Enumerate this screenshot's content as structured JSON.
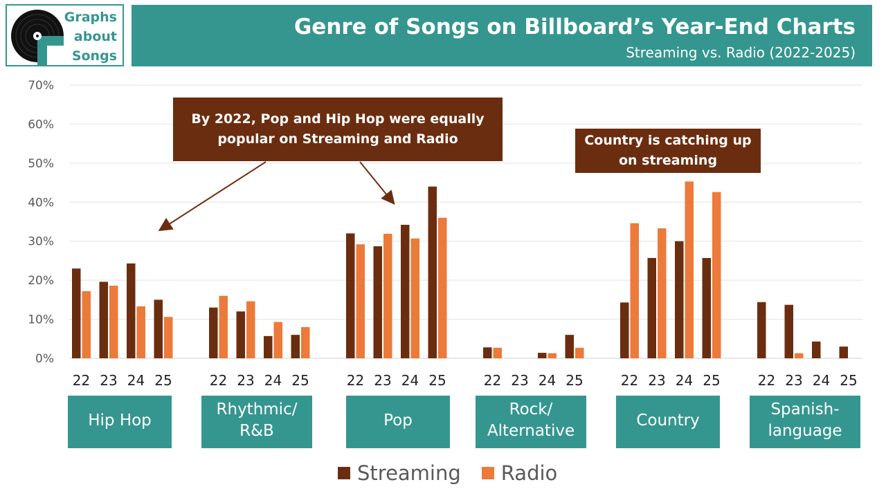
{
  "logo": {
    "text_lines": [
      "Graphs",
      "about",
      "Songs"
    ]
  },
  "header": {
    "title": "Genre of Songs on Billboard’s Year-End Charts",
    "subtitle": "Streaming vs. Radio (2022-2025)"
  },
  "annotations": {
    "pop_hiphop": "By 2022, Pop and Hip Hop were equally popular on Streaming and Radio",
    "country": "Country is catching up on streaming"
  },
  "chart_data": {
    "type": "bar",
    "ylim": [
      0,
      70
    ],
    "yticks": [
      "0%",
      "10%",
      "20%",
      "30%",
      "40%",
      "50%",
      "60%",
      "70%"
    ],
    "grid": true,
    "legend_position": "bottom-center",
    "groups": [
      "Hip Hop",
      "Rhythmic/\nR&B",
      "Pop",
      "Rock/\nAlternative",
      "Country",
      "Spanish-\nlanguage"
    ],
    "years": [
      "22",
      "23",
      "24",
      "25"
    ],
    "series": [
      {
        "name": "Streaming",
        "color": "#6b2d10",
        "values": [
          [
            23,
            19.6,
            24.3,
            15
          ],
          [
            13,
            12,
            5.7,
            6
          ],
          [
            32,
            28.7,
            34.2,
            44
          ],
          [
            2.8,
            0,
            1.4,
            6
          ],
          [
            14.3,
            25.7,
            30,
            25.7
          ],
          [
            14.4,
            13.7,
            4.3,
            3
          ]
        ]
      },
      {
        "name": "Radio",
        "color": "#ec7a3a",
        "values": [
          [
            17.2,
            18.6,
            13.3,
            10.6
          ],
          [
            16,
            14.6,
            9.3,
            8
          ],
          [
            29.2,
            31.9,
            30.7,
            36
          ],
          [
            2.7,
            0,
            1.3,
            2.7
          ],
          [
            34.6,
            33.3,
            45.3,
            42.6
          ],
          [
            0,
            1.3,
            0,
            0
          ]
        ]
      }
    ]
  }
}
